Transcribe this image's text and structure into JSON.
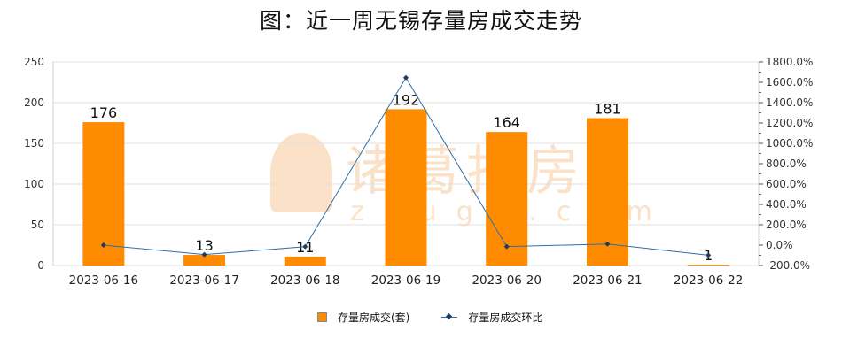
{
  "watermark": {
    "main": "诸葛找房",
    "sub": "zhuge.com"
  },
  "chart_data": {
    "type": "bar+line",
    "title": "图：近一周无锡存量房成交走势",
    "categories": [
      "2023-06-16",
      "2023-06-17",
      "2023-06-18",
      "2023-06-19",
      "2023-06-20",
      "2023-06-21",
      "2023-06-22"
    ],
    "series": [
      {
        "name": "存量房成交(套)",
        "type": "bar",
        "axis": "left",
        "color": "#ff8c00",
        "values": [
          176,
          13,
          11,
          192,
          164,
          181,
          1
        ]
      },
      {
        "name": "存量房成交环比",
        "type": "line",
        "axis": "right",
        "color": "#2e6fa8",
        "values": [
          0,
          -92.6,
          -15.4,
          1645.5,
          -14.6,
          10.4,
          -99.4
        ]
      }
    ],
    "y_left": {
      "min": 0,
      "max": 250,
      "ticks": [
        "0",
        "50",
        "100",
        "150",
        "200",
        "250"
      ]
    },
    "y_right": {
      "min": -200,
      "max": 1800,
      "ticks": [
        "-200.0%",
        "0.0%",
        "200.0%",
        "400.0%",
        "600.0%",
        "800.0%",
        "1000.0%",
        "1200.0%",
        "1400.0%",
        "1600.0%",
        "1800.0%"
      ]
    },
    "grid": true,
    "legend": "bottom"
  }
}
